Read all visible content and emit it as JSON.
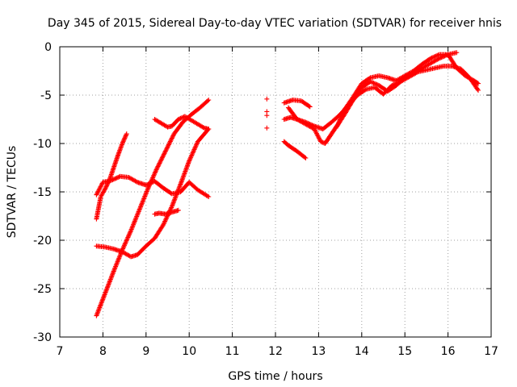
{
  "chart_data": {
    "type": "scatter",
    "title": "Day 345 of 2015, Sidereal Day-to-day VTEC variation (SDTVAR) for receiver hnis",
    "xlabel": "GPS time / hours",
    "ylabel": "SDTVAR / TECUs",
    "xlim": [
      7,
      17
    ],
    "ylim": [
      -30,
      0
    ],
    "xticks": [
      "7",
      "8",
      "9",
      "10",
      "11",
      "12",
      "13",
      "14",
      "15",
      "16",
      "17"
    ],
    "yticks": [
      "0",
      "-5",
      "-10",
      "-15",
      "-20",
      "-25",
      "-30"
    ],
    "grid": true,
    "marker": "+",
    "color": "#ff0000",
    "series": [
      {
        "name": "s1",
        "x": [
          7.85,
          7.95,
          8.05,
          8.15,
          8.25,
          8.35,
          8.45,
          8.55
        ],
        "y": [
          -17.8,
          -15.5,
          -14.7,
          -13.8,
          -12.5,
          -11.2,
          -10.0,
          -9.0
        ]
      },
      {
        "name": "s2",
        "x": [
          7.85,
          8.0,
          8.2,
          8.4,
          8.6,
          8.8,
          9.0,
          9.2,
          9.4,
          9.6,
          9.8,
          10.0,
          10.2,
          10.45
        ],
        "y": [
          -15.3,
          -14.0,
          -13.8,
          -13.4,
          -13.5,
          -14.0,
          -14.3,
          -13.9,
          -14.6,
          -15.2,
          -15.0,
          -14.0,
          -14.8,
          -15.5
        ]
      },
      {
        "name": "s3",
        "x": [
          7.85,
          8.05,
          8.25,
          8.45,
          8.65,
          8.85,
          9.05,
          9.25,
          9.45,
          9.65,
          9.85,
          10.05,
          10.25,
          10.45
        ],
        "y": [
          -27.8,
          -25.5,
          -23.2,
          -21.0,
          -19.0,
          -16.8,
          -14.6,
          -12.6,
          -10.8,
          -9.0,
          -7.8,
          -7.0,
          -6.3,
          -5.5
        ]
      },
      {
        "name": "s4",
        "x": [
          7.85,
          8.05,
          8.25,
          8.45,
          8.65,
          8.8,
          9.0,
          9.2,
          9.4,
          9.6,
          9.8,
          10.0,
          10.2,
          10.45
        ],
        "y": [
          -20.6,
          -20.7,
          -20.9,
          -21.2,
          -21.7,
          -21.5,
          -20.6,
          -19.8,
          -18.4,
          -16.5,
          -14.2,
          -11.8,
          -9.8,
          -8.5
        ]
      },
      {
        "name": "s5",
        "x": [
          9.2,
          9.35,
          9.5,
          9.6,
          9.75,
          9.9,
          10.05,
          10.2,
          10.35,
          10.45
        ],
        "y": [
          -7.5,
          -7.9,
          -8.3,
          -8.2,
          -7.5,
          -7.2,
          -7.6,
          -8.0,
          -8.4,
          -8.5
        ]
      },
      {
        "name": "s6",
        "x": [
          9.2,
          9.3,
          9.45,
          9.6,
          9.75
        ],
        "y": [
          -17.3,
          -17.2,
          -17.3,
          -17.1,
          -16.9
        ]
      },
      {
        "name": "s7",
        "x": [
          11.8,
          11.8,
          11.8,
          11.8
        ],
        "y": [
          -5.4,
          -6.7,
          -7.1,
          -8.4
        ]
      },
      {
        "name": "s8",
        "x": [
          12.2,
          12.4,
          12.6,
          12.8
        ],
        "y": [
          -5.8,
          -5.5,
          -5.6,
          -6.2
        ]
      },
      {
        "name": "s9",
        "x": [
          12.2,
          12.3,
          12.5,
          12.7
        ],
        "y": [
          -9.8,
          -10.2,
          -10.8,
          -11.5
        ]
      },
      {
        "name": "s10",
        "x": [
          12.2,
          12.35,
          12.5,
          12.7,
          12.9,
          13.1,
          13.3,
          13.5,
          13.7,
          13.9,
          14.1,
          14.3,
          14.5,
          14.7,
          14.9,
          15.1,
          15.3,
          15.5,
          15.7,
          15.9,
          16.1,
          16.3,
          16.5,
          16.7
        ],
        "y": [
          -7.5,
          -7.3,
          -7.5,
          -7.8,
          -8.2,
          -8.5,
          -7.8,
          -7.0,
          -6.0,
          -5.0,
          -4.4,
          -4.2,
          -4.9,
          -4.0,
          -3.6,
          -3.1,
          -2.6,
          -2.4,
          -2.2,
          -2.0,
          -2.0,
          -2.3,
          -3.2,
          -4.5
        ]
      },
      {
        "name": "s11",
        "x": [
          12.3,
          12.5,
          12.7,
          12.9,
          13.05,
          13.15,
          13.3,
          13.45,
          13.6,
          13.8,
          14.0,
          14.2,
          14.4,
          14.6,
          14.8,
          15.0,
          15.2,
          15.4,
          15.6,
          15.8,
          16.0,
          16.2,
          16.4,
          16.6,
          16.7
        ],
        "y": [
          -6.3,
          -7.5,
          -8.0,
          -8.5,
          -9.8,
          -10.0,
          -9.0,
          -8.0,
          -6.5,
          -5.2,
          -3.8,
          -3.2,
          -3.0,
          -3.2,
          -3.5,
          -3.0,
          -2.5,
          -1.8,
          -1.2,
          -0.8,
          -0.8,
          -2.2,
          -3.0,
          -3.5,
          -3.8
        ]
      },
      {
        "name": "s12",
        "x": [
          13.4,
          13.6,
          13.8,
          14.0,
          14.2,
          14.4,
          14.6,
          14.8,
          15.0,
          15.2,
          15.4,
          15.6,
          15.8,
          16.0,
          16.2
        ],
        "y": [
          -8.4,
          -7.0,
          -5.5,
          -4.2,
          -3.6,
          -4.0,
          -4.6,
          -4.0,
          -3.2,
          -2.8,
          -2.2,
          -1.7,
          -1.2,
          -0.8,
          -0.6
        ]
      }
    ]
  }
}
